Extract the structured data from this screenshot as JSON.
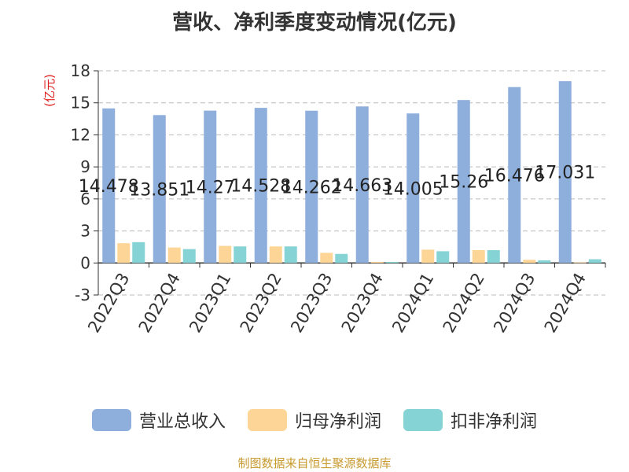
{
  "title": "营收、净利季度变动情况(亿元)",
  "source": "制图数据来自恒生聚源数据库",
  "chart_data": {
    "type": "bar",
    "ylabel": "(亿元)",
    "ylim": [
      -3,
      18
    ],
    "yticks": [
      -3,
      0,
      3,
      6,
      9,
      12,
      15,
      18
    ],
    "grid": true,
    "legend_position": "bottom",
    "categories": [
      "2022Q3",
      "2022Q4",
      "2023Q1",
      "2023Q2",
      "2023Q3",
      "2023Q4",
      "2024Q1",
      "2024Q2",
      "2024Q3",
      "2024Q4"
    ],
    "series": [
      {
        "name": "营业总收入",
        "color": "#8eaedc",
        "values": [
          14.478,
          13.851,
          14.27,
          14.528,
          14.262,
          14.663,
          14.005,
          15.26,
          16.476,
          17.031
        ],
        "labels": [
          "14.478",
          "13.851",
          "14.27",
          "14.528",
          "14.262",
          "14.663",
          "14.005",
          "15.26",
          "16.476",
          "17.031"
        ]
      },
      {
        "name": "归母净利润",
        "color": "#fdd597",
        "values": [
          1.85,
          1.45,
          1.6,
          1.55,
          0.95,
          0.1,
          1.25,
          1.2,
          0.3,
          0.05
        ]
      },
      {
        "name": "扣非净利润",
        "color": "#86d3d6",
        "values": [
          1.95,
          1.3,
          1.55,
          1.55,
          0.85,
          0.1,
          1.1,
          1.2,
          0.25,
          0.35
        ]
      }
    ]
  }
}
